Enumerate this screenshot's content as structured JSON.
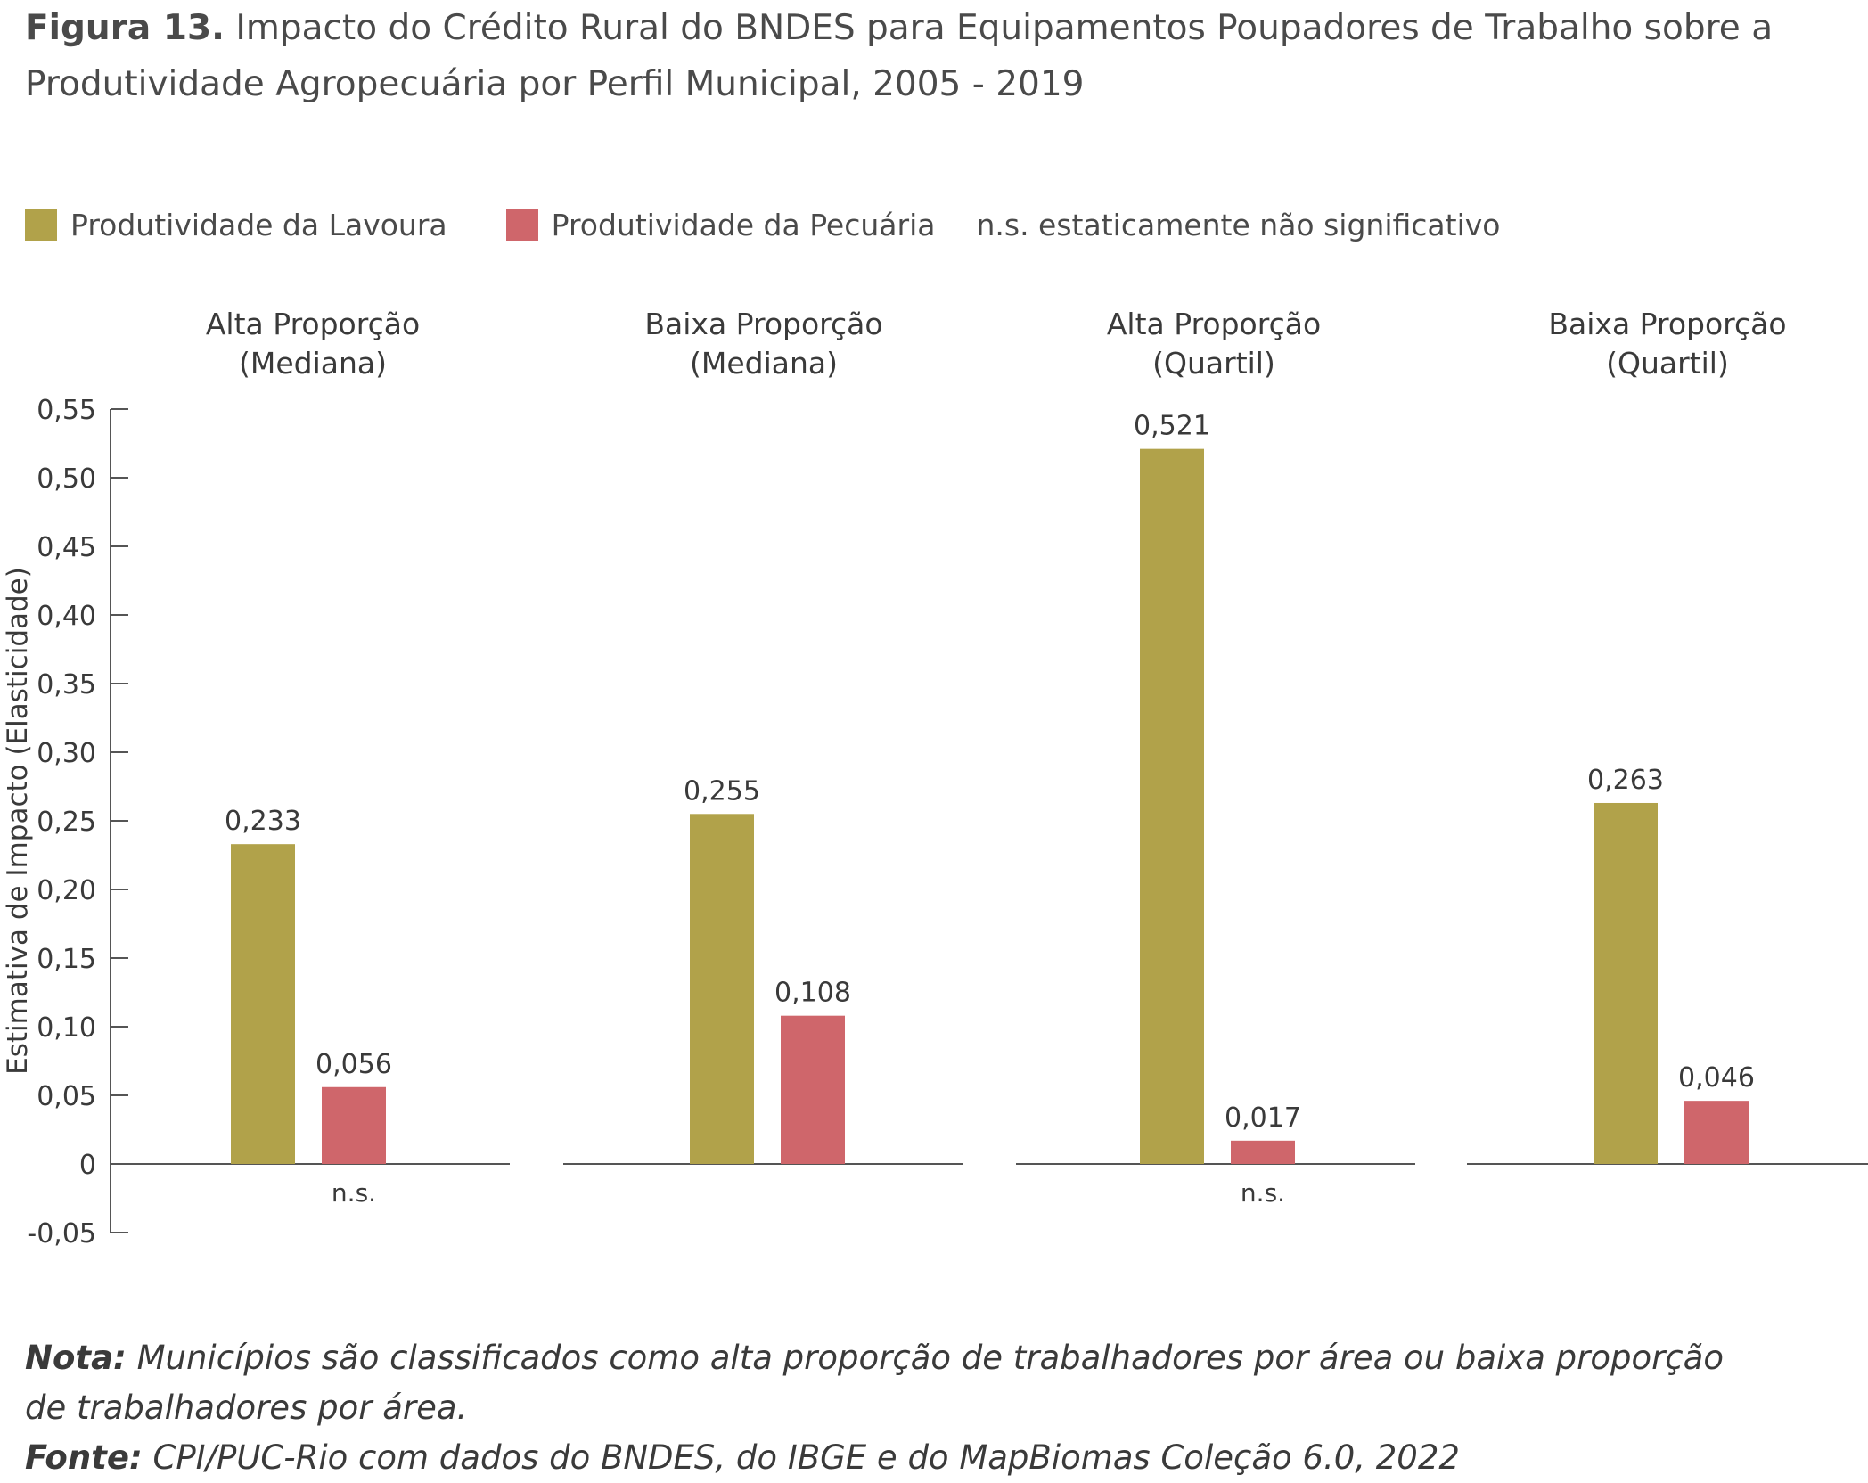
{
  "title": {
    "figure_label": "Figura 13.",
    "line1": "Impacto do Crédito Rural do BNDES para Equipamentos Poupadores de Trabalho sobre a",
    "line2": "Produtividade Agropecuária por Perfil Municipal, 2005 - 2019"
  },
  "legend": {
    "lavoura": "Produtividade da Lavoura",
    "pecuaria": "Produtividade da Pecuária",
    "ns_note": "n.s. estaticamente não significativo"
  },
  "colors": {
    "lavoura": "#b1a24a",
    "pecuaria": "#cf666b",
    "axis": "#555555"
  },
  "chart_data": {
    "type": "bar",
    "ylabel": "Estimativa de Impacto (Elasticidade)",
    "ylim": [
      -0.05,
      0.55
    ],
    "yticks": [
      -0.05,
      0,
      0.05,
      0.1,
      0.15,
      0.2,
      0.25,
      0.3,
      0.35,
      0.4,
      0.45,
      0.5,
      0.55
    ],
    "ytick_labels": [
      "-0,05",
      "0",
      "0,05",
      "0,10",
      "0,15",
      "0,20",
      "0,25",
      "0,30",
      "0,35",
      "0,40",
      "0,45",
      "0,50",
      "0,55"
    ],
    "panels": [
      {
        "line1": "Alta Proporção",
        "line2": "(Mediana)",
        "lavoura": 0.233,
        "pecuaria": 0.056,
        "lavoura_label": "0,233",
        "pecuaria_label": "0,056",
        "ns": "n.s."
      },
      {
        "line1": "Baixa Proporção",
        "line2": "(Mediana)",
        "lavoura": 0.255,
        "pecuaria": 0.108,
        "lavoura_label": "0,255",
        "pecuaria_label": "0,108",
        "ns": ""
      },
      {
        "line1": "Alta Proporção",
        "line2": "(Quartil)",
        "lavoura": 0.521,
        "pecuaria": 0.017,
        "lavoura_label": "0,521",
        "pecuaria_label": "0,017",
        "ns": "n.s."
      },
      {
        "line1": "Baixa Proporção",
        "line2": "(Quartil)",
        "lavoura": 0.263,
        "pecuaria": 0.046,
        "lavoura_label": "0,263",
        "pecuaria_label": "0,046",
        "ns": ""
      }
    ]
  },
  "notes": {
    "nota_label": "Nota:",
    "nota_text": " Municípios são classificados como alta proporção de trabalhadores por área ou baixa proporção",
    "nota_text2": "de trabalhadores por área.",
    "fonte_label": "Fonte:",
    "fonte_text": " CPI/PUC-Rio com dados do BNDES, do IBGE e do MapBiomas Coleção 6.0, 2022"
  }
}
